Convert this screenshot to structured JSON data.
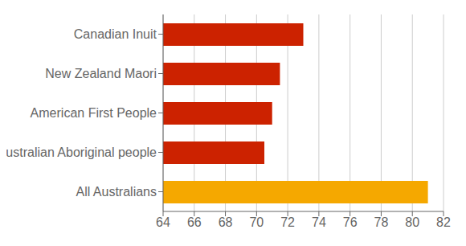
{
  "chart_data": {
    "type": "bar",
    "orientation": "horizontal",
    "categories": [
      "Canadian Inuit",
      "New Zealand Maori",
      "American First People",
      "Australian Aboriginal people",
      "All Australians"
    ],
    "values": [
      73.0,
      71.5,
      71.0,
      70.5,
      81.0
    ],
    "colors": [
      "#cc2200",
      "#cc2200",
      "#cc2200",
      "#cc2200",
      "#f5a800"
    ],
    "xlim": [
      64,
      82
    ],
    "xticks": [
      64,
      66,
      68,
      70,
      72,
      74,
      76,
      78,
      80,
      82
    ],
    "grid": true
  }
}
